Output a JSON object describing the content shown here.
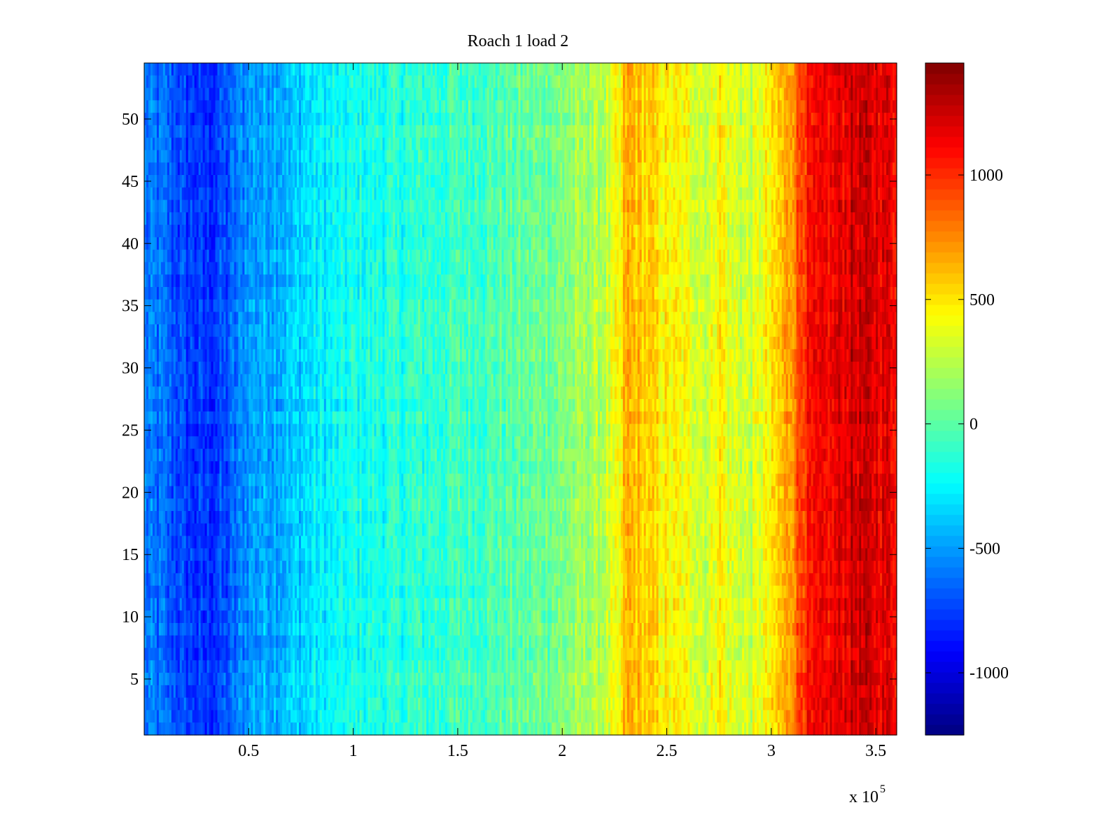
{
  "chart_data": {
    "type": "heatmap",
    "title": "Roach 1 load 2",
    "xlabel": "",
    "ylabel": "",
    "x_multiplier_label": "x 10",
    "x_multiplier_exponent": "5",
    "xlim": [
      0,
      3.6
    ],
    "ylim": [
      0.5,
      54.5
    ],
    "x_ticks": [
      0.5,
      1,
      1.5,
      2,
      2.5,
      3,
      3.5
    ],
    "x_tick_labels": [
      "0.5",
      "1",
      "1.5",
      "2",
      "2.5",
      "3",
      "3.5"
    ],
    "y_ticks": [
      5,
      10,
      15,
      20,
      25,
      30,
      35,
      40,
      45,
      50
    ],
    "y_tick_labels": [
      "5",
      "10",
      "15",
      "20",
      "25",
      "30",
      "35",
      "40",
      "45",
      "50"
    ],
    "rows": 54,
    "colorbar": {
      "colormap": "jet",
      "clim": [
        -1250,
        1450
      ],
      "ticks": [
        -1000,
        -500,
        0,
        500,
        1000
      ],
      "tick_labels": [
        "-1000",
        "-500",
        "0",
        "500",
        "1000"
      ]
    },
    "column_profile": {
      "x": [
        0,
        0.1,
        0.2,
        0.3,
        0.4,
        0.5,
        0.6,
        0.7,
        0.8,
        0.9,
        1.0,
        1.2,
        1.4,
        1.6,
        1.8,
        2.0,
        2.2,
        2.28,
        2.3,
        2.35,
        2.4,
        2.5,
        2.6,
        2.7,
        2.75,
        2.8,
        2.9,
        3.0,
        3.05,
        3.1,
        3.15,
        3.2,
        3.3,
        3.4,
        3.5,
        3.6
      ],
      "value": [
        -600,
        -650,
        -750,
        -800,
        -700,
        -500,
        -450,
        -400,
        -300,
        -250,
        -200,
        -150,
        -100,
        -50,
        0,
        100,
        250,
        400,
        650,
        600,
        550,
        450,
        400,
        300,
        500,
        350,
        300,
        450,
        600,
        750,
        1000,
        1050,
        1150,
        1250,
        1200,
        1150
      ]
    },
    "noise_amplitude": 220,
    "colors": {
      "background": "#ffffff",
      "axis": "#000000"
    }
  }
}
